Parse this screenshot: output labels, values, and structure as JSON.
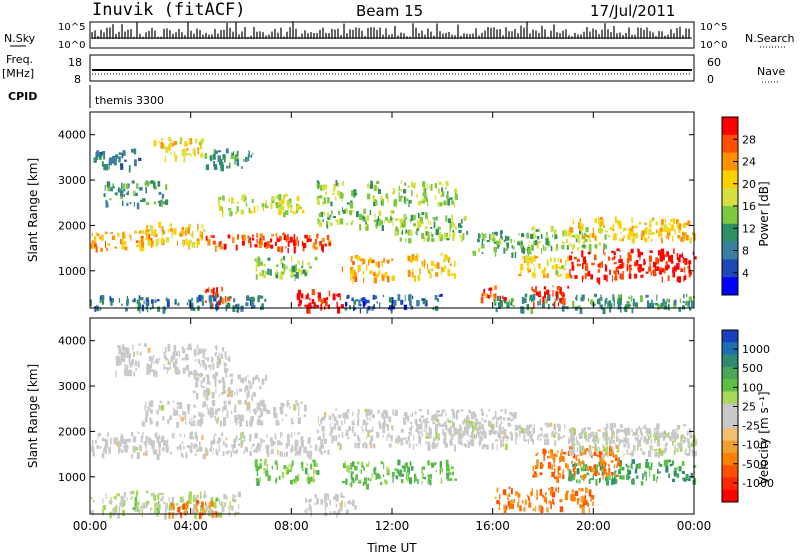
{
  "header": {
    "station": "Inuvik (fitACF)",
    "beam": "Beam 15",
    "date": "17/Jul/2011"
  },
  "params": {
    "nsky_label": "N.Sky",
    "nsearch_label": "N.Search",
    "freq_label": "Freq.",
    "freq_unit": "[MHz]",
    "nave_label": "Nave",
    "cpid_label": "CPID",
    "cpid_value": "themis 3300",
    "count_tick_top": "10^5",
    "count_tick_bottom": "10^0",
    "freq_ticks": [
      "18",
      "8"
    ],
    "nave_ticks": [
      "60",
      "0"
    ]
  },
  "colorbars": {
    "power": {
      "label": "Power [dB]",
      "ticks": [
        "28",
        "24",
        "20",
        "16",
        "12",
        "8",
        "4"
      ],
      "colors": [
        "#ff0000",
        "#ff5000",
        "#ff9000",
        "#ffd000",
        "#d8e040",
        "#7cc840",
        "#2e9060",
        "#3a80a0",
        "#1e48b8",
        "#0000ff"
      ]
    },
    "velocity": {
      "label": "Velocity [m s⁻¹]",
      "ticks": [
        "1000",
        "500",
        "100",
        "25",
        "-25",
        "-100",
        "-500",
        "-1000"
      ],
      "colors": [
        "#1840c0",
        "#1e70b0",
        "#2e8a70",
        "#48a858",
        "#5cc040",
        "#a8d858",
        "#c8c8c8",
        "#c8c8c8",
        "#f0c070",
        "#f0a030",
        "#ff8000",
        "#ff5000",
        "#ff2800",
        "#ff0000"
      ]
    }
  },
  "chart_data": [
    {
      "type": "heatmap",
      "title": "Power",
      "ylabel": "Slant Range [km]",
      "xlabel": "",
      "x_range_hours": [
        0,
        24
      ],
      "ylim": [
        180,
        4500
      ],
      "yticks": [
        "1000",
        "2000",
        "3000",
        "4000"
      ],
      "xticks": [
        "00:00",
        "04:00",
        "08:00",
        "12:00",
        "16:00",
        "20:00",
        "00:00"
      ],
      "colorbar_range": [
        0,
        30
      ],
      "colorbar_unit": "dB",
      "bands": [
        {
          "t0": 0.0,
          "t1": 2.5,
          "r0": 1500,
          "r1": 1900,
          "value": 22
        },
        {
          "t0": 2.0,
          "t1": 4.5,
          "r0": 1600,
          "r1": 2100,
          "value": 20
        },
        {
          "t0": 4.5,
          "t1": 9.5,
          "r0": 1500,
          "r1": 1850,
          "value": 26
        },
        {
          "t0": 5.0,
          "t1": 8.5,
          "r0": 2300,
          "r1": 2700,
          "value": 16
        },
        {
          "t0": 6.5,
          "t1": 9.0,
          "r0": 900,
          "r1": 1350,
          "value": 14
        },
        {
          "t0": 9.0,
          "t1": 12.0,
          "r0": 2000,
          "r1": 2400,
          "value": 14
        },
        {
          "t0": 12.0,
          "t1": 15.0,
          "r0": 1700,
          "r1": 2300,
          "value": 14
        },
        {
          "t0": 15.0,
          "t1": 17.5,
          "r0": 1400,
          "r1": 1900,
          "value": 12
        },
        {
          "t0": 17.5,
          "t1": 20.5,
          "r0": 1500,
          "r1": 2000,
          "value": 14
        },
        {
          "t0": 19.0,
          "t1": 24.0,
          "r0": 1700,
          "r1": 2200,
          "value": 20
        },
        {
          "t0": 10.0,
          "t1": 12.0,
          "r0": 850,
          "r1": 1350,
          "value": 22
        },
        {
          "t0": 12.5,
          "t1": 14.5,
          "r0": 900,
          "r1": 1400,
          "value": 20
        },
        {
          "t0": 17.0,
          "t1": 19.0,
          "r0": 900,
          "r1": 1350,
          "value": 18
        },
        {
          "t0": 19.0,
          "t1": 24.0,
          "r0": 850,
          "r1": 1500,
          "value": 28
        },
        {
          "t0": 8.2,
          "t1": 10.0,
          "r0": 180,
          "r1": 600,
          "value": 30
        },
        {
          "t0": 4.5,
          "t1": 5.5,
          "r0": 250,
          "r1": 650,
          "value": 26
        },
        {
          "t0": 0.0,
          "t1": 7.0,
          "r0": 180,
          "r1": 480,
          "value": 8
        },
        {
          "t0": 10.0,
          "t1": 14.0,
          "r0": 180,
          "r1": 500,
          "value": 6
        },
        {
          "t0": 16.0,
          "t1": 24.0,
          "r0": 180,
          "r1": 500,
          "value": 10
        },
        {
          "t0": 17.5,
          "t1": 19.0,
          "r0": 300,
          "r1": 700,
          "value": 28
        },
        {
          "t0": 15.5,
          "t1": 16.5,
          "r0": 400,
          "r1": 700,
          "value": 26
        },
        {
          "t0": 0.0,
          "t1": 2.0,
          "r0": 3300,
          "r1": 3700,
          "value": 8
        },
        {
          "t0": 2.5,
          "t1": 4.5,
          "r0": 3500,
          "r1": 3950,
          "value": 18
        },
        {
          "t0": 4.5,
          "t1": 6.5,
          "r0": 3300,
          "r1": 3700,
          "value": 10
        },
        {
          "t0": 9.0,
          "t1": 10.5,
          "r0": 2500,
          "r1": 3000,
          "value": 14
        },
        {
          "t0": 11.0,
          "t1": 14.5,
          "r0": 2500,
          "r1": 3000,
          "value": 14
        },
        {
          "t0": 0.5,
          "t1": 3.0,
          "r0": 2500,
          "r1": 3000,
          "value": 10
        }
      ]
    },
    {
      "type": "heatmap",
      "title": "Velocity",
      "ylabel": "Slant Range [km]",
      "xlabel": "Time UT",
      "x_range_hours": [
        0,
        24
      ],
      "ylim": [
        180,
        4500
      ],
      "yticks": [
        "1000",
        "2000",
        "3000",
        "4000"
      ],
      "xticks": [
        "00:00",
        "04:00",
        "08:00",
        "12:00",
        "16:00",
        "20:00",
        "00:00"
      ],
      "colorbar_range": [
        -1000,
        1000
      ],
      "colorbar_unit": "m s-1",
      "bands": [
        {
          "t0": 0.0,
          "t1": 9.5,
          "r0": 1500,
          "r1": 2000,
          "value": 0
        },
        {
          "t0": 2.0,
          "t1": 8.5,
          "r0": 2200,
          "r1": 2700,
          "value": 0
        },
        {
          "t0": 9.0,
          "t1": 17.0,
          "r0": 1700,
          "r1": 2500,
          "value": 0
        },
        {
          "t0": 17.0,
          "t1": 24.0,
          "r0": 1800,
          "r1": 2200,
          "value": 0
        },
        {
          "t0": 1.0,
          "t1": 5.5,
          "r0": 3300,
          "r1": 3950,
          "value": 0
        },
        {
          "t0": 4.0,
          "t1": 7.0,
          "r0": 2800,
          "r1": 3300,
          "value": 0
        },
        {
          "t0": 6.5,
          "t1": 9.0,
          "r0": 900,
          "r1": 1400,
          "value": 300
        },
        {
          "t0": 10.0,
          "t1": 12.0,
          "r0": 850,
          "r1": 1350,
          "value": 350
        },
        {
          "t0": 12.0,
          "t1": 14.5,
          "r0": 900,
          "r1": 1400,
          "value": 400
        },
        {
          "t0": 19.0,
          "t1": 24.0,
          "r0": 900,
          "r1": 1400,
          "value": 500
        },
        {
          "t0": 17.5,
          "t1": 21.0,
          "r0": 1000,
          "r1": 1700,
          "value": -500
        },
        {
          "t0": 16.0,
          "t1": 20.0,
          "r0": 300,
          "r1": 800,
          "value": -500
        },
        {
          "t0": 8.5,
          "t1": 10.5,
          "r0": 200,
          "r1": 650,
          "value": 0
        },
        {
          "t0": 0.0,
          "t1": 6.0,
          "r0": 200,
          "r1": 700,
          "value": 150
        },
        {
          "t0": 3.0,
          "t1": 5.0,
          "r0": 200,
          "r1": 500,
          "value": -500
        },
        {
          "t0": 19.0,
          "t1": 24.0,
          "r0": 1500,
          "r1": 2100,
          "value": 80
        },
        {
          "t0": 13.0,
          "t1": 16.5,
          "r0": 1900,
          "r1": 2300,
          "value": 60
        }
      ]
    }
  ]
}
